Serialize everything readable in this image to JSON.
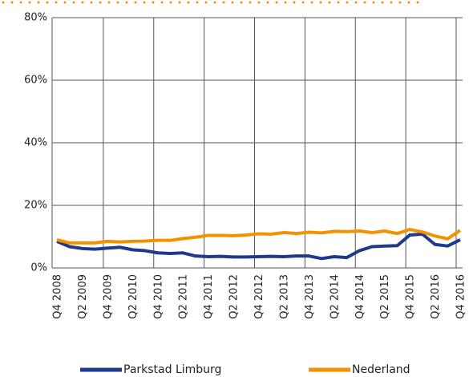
{
  "chart_data": {
    "type": "line",
    "categories": [
      "Q4 2008",
      null,
      "Q2 2009",
      null,
      "Q4 2009",
      null,
      "Q2 2010",
      null,
      "Q4 2010",
      null,
      "Q2 2011",
      null,
      "Q4 2011",
      null,
      "Q2 2012",
      null,
      "Q4 2012",
      null,
      "Q2 2013",
      null,
      "Q4 2013",
      null,
      "Q2 2014",
      null,
      "Q4 2014",
      null,
      "Q2 2015",
      null,
      "Q4 2015",
      null,
      "Q2 2016",
      null,
      "Q4 2016"
    ],
    "series": [
      {
        "name": "Parkstad Limburg",
        "color": "#1f3a8a",
        "values": [
          8.5,
          6.8,
          6.2,
          6.0,
          6.3,
          6.6,
          5.8,
          5.5,
          4.8,
          4.6,
          4.8,
          3.8,
          3.6,
          3.7,
          3.5,
          3.5,
          3.6,
          3.7,
          3.6,
          3.8,
          3.8,
          3.0,
          3.6,
          3.3,
          5.5,
          6.8,
          7.0,
          7.1,
          10.5,
          10.8,
          7.5,
          7.0,
          9.0
        ]
      },
      {
        "name": "Nederland",
        "color": "#f39200",
        "values": [
          9.0,
          8.0,
          8.0,
          8.0,
          8.5,
          8.3,
          8.5,
          8.6,
          8.8,
          8.8,
          9.4,
          9.8,
          10.4,
          10.4,
          10.3,
          10.5,
          10.9,
          10.8,
          11.3,
          11.0,
          11.4,
          11.2,
          11.7,
          11.6,
          11.8,
          11.3,
          11.8,
          11.0,
          12.3,
          11.5,
          10.2,
          9.3,
          12.0
        ]
      }
    ],
    "ylim": [
      0,
      80
    ],
    "yticks": [
      {
        "value": 0,
        "label": "0%"
      },
      {
        "value": 20,
        "label": "20%"
      },
      {
        "value": 40,
        "label": "40%"
      },
      {
        "value": 60,
        "label": "60%"
      },
      {
        "value": 80,
        "label": "80%"
      }
    ],
    "grid": true,
    "legend": "bottom"
  }
}
